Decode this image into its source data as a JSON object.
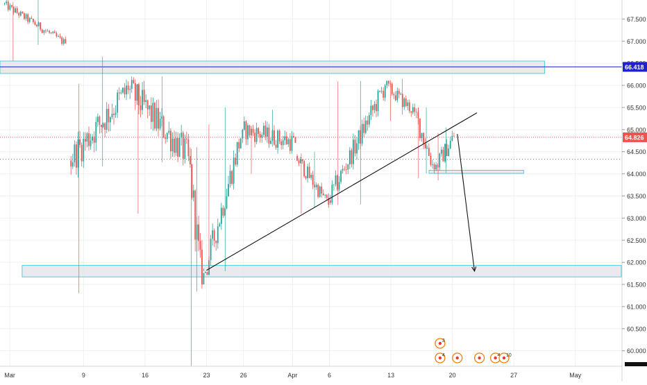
{
  "chart_data": {
    "type": "candlestick",
    "title": "",
    "xlabel": "",
    "ylabel": "",
    "ylim": [
      59.65,
      67.93
    ],
    "x_tick_labels": [
      {
        "label": "Mar",
        "index": 0
      },
      {
        "label": "9",
        "index": 6
      },
      {
        "label": "16",
        "index": 11
      },
      {
        "label": "23",
        "index": 16
      },
      {
        "label": "26",
        "index": 19
      },
      {
        "label": "Apr",
        "index": 23
      },
      {
        "label": "6",
        "index": 26
      },
      {
        "label": "13",
        "index": 31
      },
      {
        "label": "20",
        "index": 36
      },
      {
        "label": "27",
        "index": 41
      },
      {
        "label": "May",
        "index": 46
      }
    ],
    "x_index_range": [
      -0.8,
      49.8
    ],
    "y_ticks": [
      "60.000",
      "60.500",
      "61.000",
      "61.500",
      "62.000",
      "62.500",
      "63.000",
      "63.500",
      "64.000",
      "64.500",
      "65.000",
      "65.500",
      "66.000",
      "66.500",
      "67.000",
      "67.500"
    ],
    "y_tick_values": [
      60.0,
      60.5,
      61.0,
      61.5,
      62.0,
      62.5,
      63.0,
      63.5,
      64.0,
      64.5,
      65.0,
      65.5,
      66.0,
      66.5,
      67.0,
      67.5
    ],
    "price_labels": [
      {
        "text": "66.418",
        "value": 66.418,
        "color": "#1e22c8"
      },
      {
        "text": "64.826",
        "value": 64.826,
        "color": "#ef5350"
      }
    ],
    "dotted_level": 64.33,
    "colors": {
      "up": "#26a69a",
      "down": "#ef5350",
      "zone_border": "#4dd0e1",
      "zone_fill": "#e3e3e8",
      "level_line": "#1e22c8",
      "current_line": "#ef5350"
    },
    "zones": [
      {
        "name": "resistance-zone",
        "x_start": -0.8,
        "x_end": 43.5,
        "y_low": 66.27,
        "y_high": 66.55
      },
      {
        "name": "support-zone-low",
        "x_start": 1.0,
        "x_end": 49.8,
        "y_low": 61.67,
        "y_high": 61.93
      },
      {
        "name": "support-zone-mid",
        "x_start": 34.1,
        "x_end": 41.8,
        "y_low": 64.01,
        "y_high": 64.08
      }
    ],
    "trendline": {
      "x1": 16.0,
      "y1": 61.82,
      "x2": 38.0,
      "y2": 65.38
    },
    "projection_arrow": {
      "x1": 36.4,
      "y1": 64.9,
      "x2": 37.8,
      "y2": 61.8
    },
    "segments": [
      {
        "x_start": -0.5,
        "x_end": 4.6,
        "open": 67.85,
        "close": 66.95,
        "high": 67.95,
        "low": 66.55,
        "vol": 0.12
      },
      {
        "x_start": 4.9,
        "x_end": 9.7,
        "open": 64.3,
        "close": 65.9,
        "high": 66.65,
        "low": 61.3,
        "vol": 0.45
      },
      {
        "x_start": 9.7,
        "x_end": 14.6,
        "open": 65.9,
        "close": 64.4,
        "high": 66.2,
        "low": 63.1,
        "vol": 0.45
      },
      {
        "x_start": 14.6,
        "x_end": 15.7,
        "open": 64.4,
        "close": 61.5,
        "high": 64.6,
        "low": 59.65,
        "vol": 0.55
      },
      {
        "x_start": 15.7,
        "x_end": 19.0,
        "open": 61.5,
        "close": 65.0,
        "high": 65.5,
        "low": 61.8,
        "vol": 0.4
      },
      {
        "x_start": 19.0,
        "x_end": 23.3,
        "open": 65.0,
        "close": 64.7,
        "high": 65.45,
        "low": 64.0,
        "vol": 0.28
      },
      {
        "x_start": 23.3,
        "x_end": 26.0,
        "open": 64.4,
        "close": 63.3,
        "high": 64.5,
        "low": 63.1,
        "vol": 0.22
      },
      {
        "x_start": 26.0,
        "x_end": 30.6,
        "open": 63.4,
        "close": 66.0,
        "high": 66.1,
        "low": 63.3,
        "vol": 0.3
      },
      {
        "x_start": 30.6,
        "x_end": 33.0,
        "open": 66.0,
        "close": 65.4,
        "high": 66.15,
        "low": 65.2,
        "vol": 0.2
      },
      {
        "x_start": 33.0,
        "x_end": 34.6,
        "open": 65.4,
        "close": 64.1,
        "high": 65.5,
        "low": 63.9,
        "vol": 0.3
      },
      {
        "x_start": 34.6,
        "x_end": 36.2,
        "open": 64.1,
        "close": 64.85,
        "high": 65.05,
        "low": 63.85,
        "vol": 0.25
      }
    ],
    "event_markers": {
      "row1": [
        {
          "index": 35.0,
          "count": "3"
        }
      ],
      "row2": [
        {
          "index": 35.0,
          "count": "4"
        },
        {
          "index": 36.4,
          "count": ""
        },
        {
          "index": 38.2,
          "count": ""
        },
        {
          "index": 39.5,
          "count": "4"
        },
        {
          "index": 40.2,
          "count": "10"
        }
      ]
    }
  }
}
